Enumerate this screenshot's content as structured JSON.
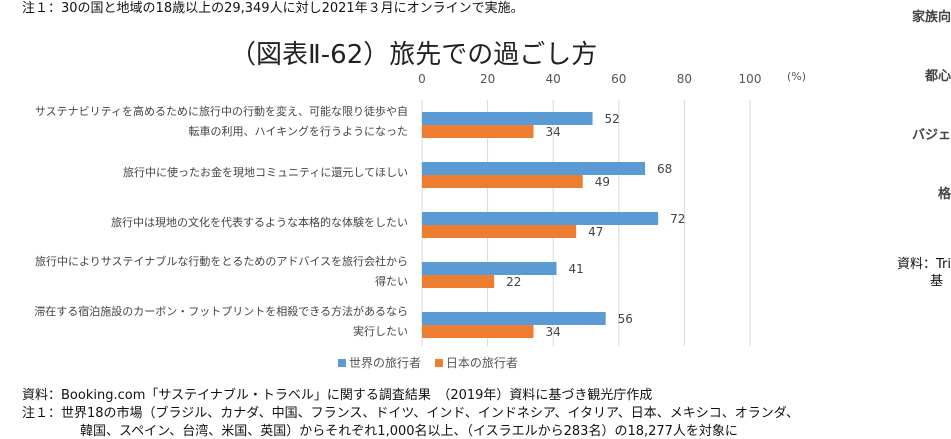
{
  "top_note": "注１：30の国と地域の18歳以上の29,349人に対し2021年３月にオンラインで実施。",
  "right_panel": {
    "labels": [
      "家族向",
      "都心",
      "バジェ",
      "格"
    ],
    "source_line1": "資料：Tri",
    "source_line2": "基"
  },
  "chart_data": {
    "type": "bar",
    "orientation": "horizontal",
    "title": "（図表Ⅱ-62）旅先での過ごし方",
    "unit": "(%)",
    "xlim": [
      0,
      100
    ],
    "ticks": [
      "0",
      "20",
      "40",
      "60",
      "80",
      "100"
    ],
    "grid": true,
    "legend_position": "bottom",
    "categories": [
      "サステナビリティを高めるために旅行中の行動を変え、可能な限り徒歩や自転車の利用、ハイキングを行うようになった",
      "旅行中に使ったお金を現地コミュニティに還元してほしい",
      "旅行中は現地の文化を代表するような本格的な体験をしたい",
      "旅行中によりサステイナブルな行動をとるためのアドバイスを旅行会社から得たい",
      "滞在する宿泊施設のカーボン・フットプリントを相殺できる方法があるなら実行したい"
    ],
    "series": [
      {
        "name": "世界の旅行者",
        "color": "#5B9BD5",
        "values": [
          52,
          68,
          72,
          41,
          56
        ]
      },
      {
        "name": "日本の旅行者",
        "color": "#ED7D31",
        "values": [
          34,
          49,
          47,
          22,
          34
        ]
      }
    ]
  },
  "source": "資料：Booking.com「サステイナブル・トラベル」に関する調査結果　（2019年）資料に基づき観光庁作成",
  "note1": "注１：世界18の市場（ブラジル、カナダ、中国、フランス、ドイツ、インド、インドネシア、イタリア、日本、メキシコ、オランダ、",
  "note1_cont": "韓国、スペイン、台湾、米国、英国）からそれぞれ1,000名以上、（イスラエルから283名）の18,277人を対象に"
}
